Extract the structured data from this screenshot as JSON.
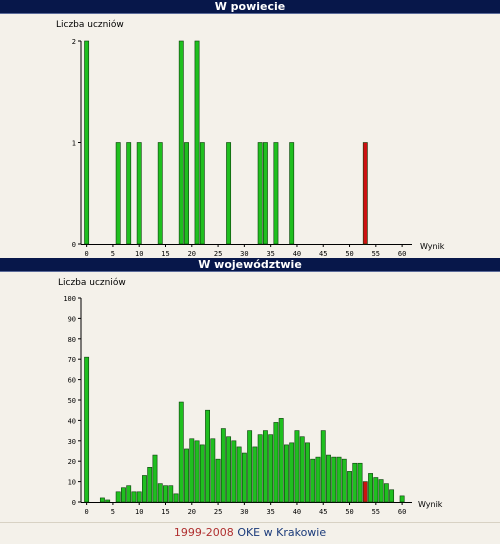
{
  "footer": {
    "years": "1999-2008",
    "org": "OKE w Krakowie"
  },
  "chart_data": [
    {
      "type": "bar",
      "title": "W powiecie",
      "ylabel": "Liczba uczniów",
      "xlabel": "Wynik",
      "xlim": [
        0,
        62
      ],
      "ylim": [
        0,
        2
      ],
      "xticks": [
        0,
        5,
        10,
        15,
        20,
        25,
        30,
        35,
        40,
        45,
        50,
        55,
        60
      ],
      "yticks": [
        0,
        1,
        2
      ],
      "bar_color": "#1fbf1f",
      "highlight_color": "#cc1111",
      "highlight_x": 53,
      "x": [
        0,
        6,
        8,
        10,
        14,
        18,
        19,
        21,
        22,
        27,
        33,
        34,
        36,
        39,
        53
      ],
      "values": [
        2,
        1,
        1,
        1,
        1,
        2,
        1,
        2,
        1,
        1,
        1,
        1,
        1,
        1,
        1
      ]
    },
    {
      "type": "bar",
      "title": "W województwie",
      "ylabel": "Liczba uczniów",
      "xlabel": "Wynik",
      "xlim": [
        0,
        62
      ],
      "ylim": [
        0,
        100
      ],
      "xticks": [
        0,
        5,
        10,
        15,
        20,
        25,
        30,
        35,
        40,
        45,
        50,
        55,
        60
      ],
      "yticks": [
        0,
        10,
        20,
        30,
        40,
        50,
        60,
        70,
        80,
        90,
        100
      ],
      "bar_color": "#1fbf1f",
      "highlight_color": "#cc1111",
      "highlight_x": 53,
      "x": [
        0,
        1,
        2,
        3,
        4,
        5,
        6,
        7,
        8,
        9,
        10,
        11,
        12,
        13,
        14,
        15,
        16,
        17,
        18,
        19,
        20,
        21,
        22,
        23,
        24,
        25,
        26,
        27,
        28,
        29,
        30,
        31,
        32,
        33,
        34,
        35,
        36,
        37,
        38,
        39,
        40,
        41,
        42,
        43,
        44,
        45,
        46,
        47,
        48,
        49,
        50,
        51,
        52,
        53,
        54,
        55,
        56,
        57,
        58,
        59,
        60
      ],
      "values": [
        71,
        0,
        0,
        2,
        1,
        0,
        5,
        7,
        8,
        5,
        5,
        13,
        17,
        23,
        9,
        8,
        8,
        4,
        49,
        26,
        31,
        30,
        28,
        45,
        31,
        21,
        36,
        32,
        30,
        27,
        24,
        35,
        27,
        33,
        35,
        33,
        39,
        41,
        28,
        29,
        35,
        32,
        29,
        21,
        22,
        35,
        23,
        22,
        22,
        21,
        15,
        19,
        19,
        10,
        14,
        12,
        11,
        9,
        6,
        0,
        3
      ]
    }
  ]
}
